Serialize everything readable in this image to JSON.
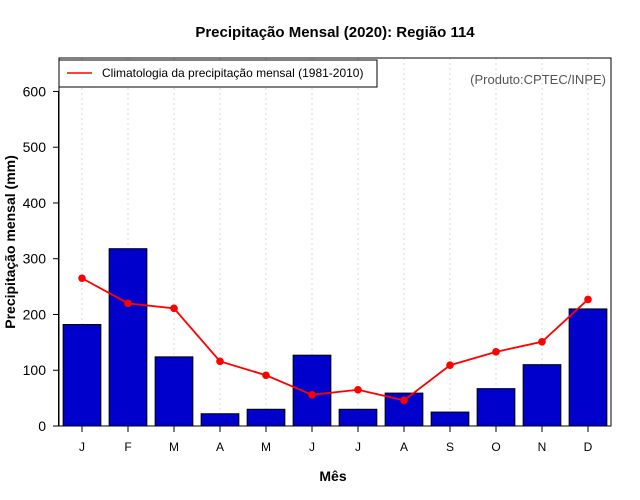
{
  "chart_data": {
    "type": "bar",
    "title": "Precipitação Mensal (2020): Região 114",
    "xlabel": "Mês",
    "ylabel": "Precipitação mensal (mm)",
    "ylim": [
      0,
      660
    ],
    "yticks": [
      0,
      100,
      200,
      300,
      400,
      500,
      600
    ],
    "categories": [
      "J",
      "F",
      "M",
      "A",
      "M",
      "J",
      "J",
      "A",
      "S",
      "O",
      "N",
      "D"
    ],
    "series": [
      {
        "name": "Precipitação mensal (2020)",
        "type": "bar",
        "color": "#0000CD",
        "values": [
          182,
          318,
          124,
          22,
          30,
          127,
          30,
          59,
          25,
          67,
          110,
          210
        ]
      },
      {
        "name": "Climatologia da precipitação mensal (1981-2010)",
        "type": "line",
        "color": "#FF0000",
        "values": [
          265,
          220,
          211,
          116,
          91,
          56,
          65,
          46,
          109,
          133,
          151,
          227
        ]
      }
    ],
    "legend": {
      "position": "top-left",
      "label": "Climatologia da precipitação mensal (1981-2010)"
    },
    "grid": "vertical-dotted",
    "credit": "(Produto:CPTEC/INPE)"
  }
}
